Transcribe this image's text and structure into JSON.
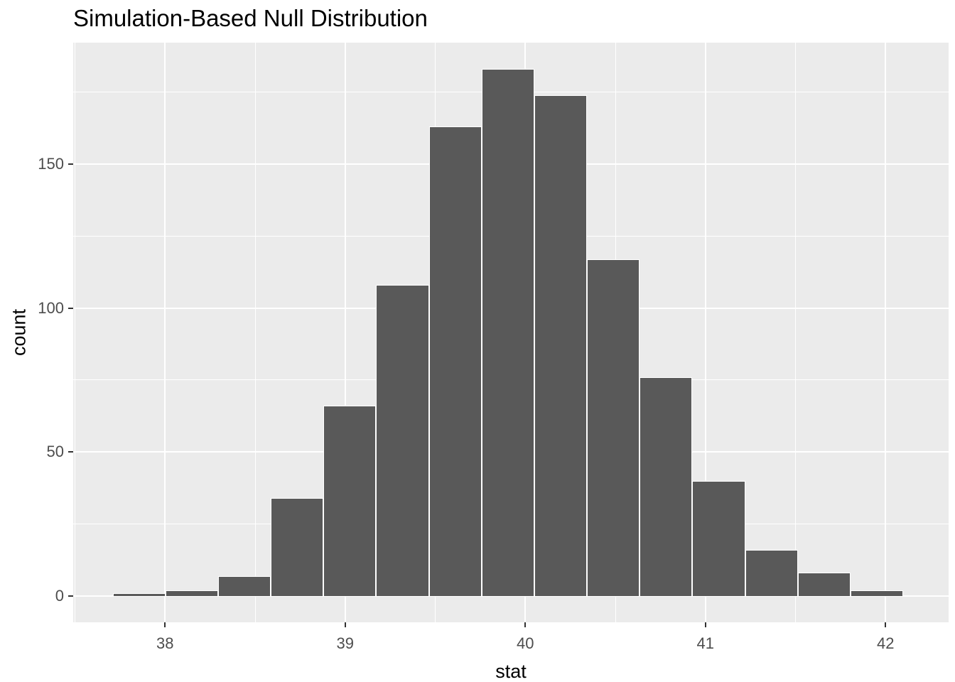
{
  "chart_data": {
    "type": "bar",
    "subtype": "histogram",
    "title": "Simulation-Based Null Distribution",
    "xlabel": "stat",
    "ylabel": "count",
    "x_ticks": [
      38,
      39,
      40,
      41,
      42
    ],
    "y_ticks": [
      0,
      50,
      100,
      150
    ],
    "x_minor_ticks": [
      37.5,
      38.5,
      39.5,
      40.5,
      41.5
    ],
    "y_minor_ticks": [
      25,
      75,
      125,
      175
    ],
    "xlim": [
      37.49,
      42.35
    ],
    "ylim": [
      -9.15,
      192.15
    ],
    "grid": {
      "major": true,
      "minor": true,
      "position": "both-axes"
    },
    "legend_position": "none",
    "bins": {
      "start": 37.709,
      "width": 0.2926,
      "centers": [
        37.86,
        38.15,
        38.44,
        38.73,
        39.03,
        39.32,
        39.61,
        39.9,
        40.2,
        40.49,
        40.78,
        41.07,
        41.37,
        41.66,
        41.95
      ],
      "counts": [
        1,
        2,
        7,
        34,
        66,
        108,
        163,
        183,
        174,
        117,
        76,
        40,
        16,
        8,
        2
      ]
    },
    "colors": {
      "bar_fill": "#595959",
      "bar_border": "#FFFFFF",
      "panel_bg": "#EBEBEB",
      "page_bg": "#FFFFFF",
      "grid": "#FFFFFF",
      "tick_label": "#4D4D4D",
      "tick_mark": "#333333",
      "title_text": "#000000"
    }
  }
}
